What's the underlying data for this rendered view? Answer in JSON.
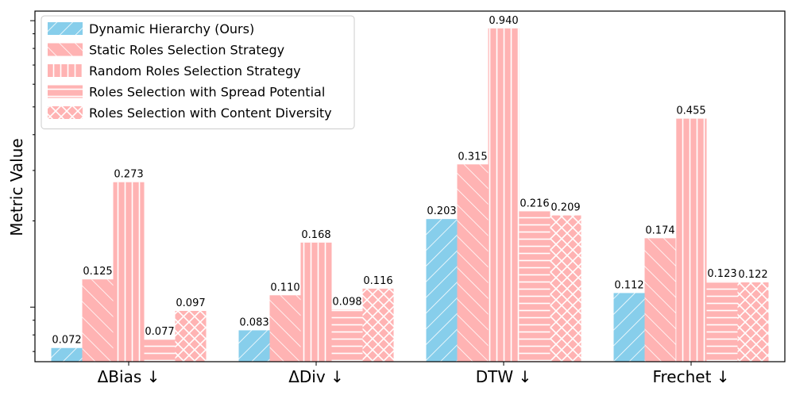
{
  "chart_data": {
    "type": "bar",
    "title": "",
    "xlabel": "",
    "ylabel": "Metric Value",
    "y_scale": "log",
    "ylim": [
      0.0645,
      1.08
    ],
    "grid": false,
    "legend_position": "top-left",
    "categories": [
      "ΔBias ↓",
      "ΔDiv ↓",
      "DTW ↓",
      "Frechet ↓"
    ],
    "series": [
      {
        "name": "Dynamic Hierarchy (Ours)",
        "color": "#87ceeb",
        "hatch": "diagonal-forward",
        "values": [
          0.072,
          0.083,
          0.203,
          0.112
        ],
        "labels": [
          "0.072",
          "0.083",
          "0.203",
          "0.112"
        ]
      },
      {
        "name": "Static Roles Selection Strategy",
        "color": "#ffb3b3",
        "hatch": "diagonal-back",
        "values": [
          0.125,
          0.11,
          0.315,
          0.174
        ],
        "labels": [
          "0.125",
          "0.110",
          "0.315",
          "0.174"
        ]
      },
      {
        "name": "Random Roles Selection Strategy",
        "color": "#ffb3b3",
        "hatch": "vertical",
        "values": [
          0.273,
          0.168,
          0.94,
          0.455
        ],
        "labels": [
          "0.273",
          "0.168",
          "0.940",
          "0.455"
        ]
      },
      {
        "name": "Roles Selection with Spread Potential",
        "color": "#ffb3b3",
        "hatch": "horizontal",
        "values": [
          0.077,
          0.098,
          0.216,
          0.123
        ],
        "labels": [
          "0.077",
          "0.098",
          "0.216",
          "0.123"
        ]
      },
      {
        "name": "Roles Selection with Content Diversity",
        "color": "#ffb3b3",
        "hatch": "cross",
        "values": [
          0.097,
          0.116,
          0.209,
          0.122
        ],
        "labels": [
          "0.097",
          "0.116",
          "0.209",
          "0.122"
        ]
      }
    ]
  }
}
